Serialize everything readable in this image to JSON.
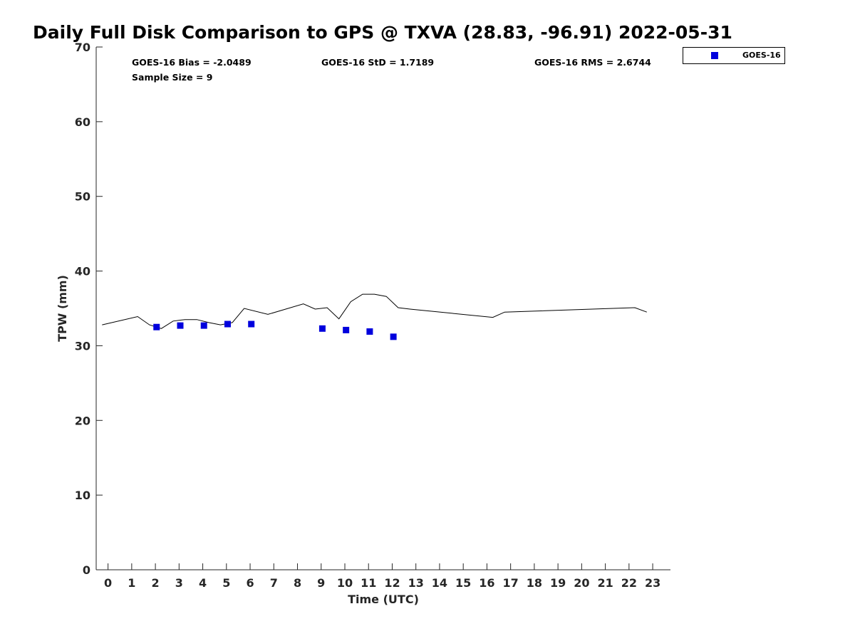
{
  "chart_data": {
    "type": "scatter",
    "title": "Daily Full Disk Comparison to GPS @ TXVA (28.83, -96.91) 2022-05-31",
    "xlabel": "Time (UTC)",
    "ylabel": "TPW (mm)",
    "xlim": [
      -0.5,
      23.75
    ],
    "ylim": [
      0,
      70
    ],
    "xticks": [
      0,
      1,
      2,
      3,
      4,
      5,
      6,
      7,
      8,
      9,
      10,
      11,
      12,
      13,
      14,
      15,
      16,
      17,
      18,
      19,
      20,
      21,
      22,
      23
    ],
    "yticks": [
      0,
      10,
      20,
      30,
      40,
      50,
      60,
      70
    ],
    "grid": false,
    "legend_position": "top-right",
    "stats": {
      "bias": "GOES-16 Bias = -2.0489",
      "std": "GOES-16 StD = 1.7189",
      "rms": "GOES-16 RMS = 2.6744",
      "sample": "Sample Size = 9"
    },
    "series": [
      {
        "name": "GOES-16",
        "kind": "scatter",
        "color": "#0000dd",
        "marker": "square",
        "x": [
          2.05,
          3.05,
          4.05,
          5.05,
          6.05,
          9.05,
          10.05,
          11.05,
          12.05
        ],
        "y": [
          32.5,
          32.7,
          32.7,
          32.9,
          32.9,
          32.3,
          32.1,
          31.9,
          31.2
        ]
      },
      {
        "name": "",
        "kind": "line",
        "color": "#000000",
        "x": [
          -0.25,
          1.25,
          1.75,
          2.25,
          2.75,
          3.25,
          3.75,
          4.25,
          4.75,
          5.25,
          5.75,
          6.75,
          8.25,
          8.75,
          9.25,
          9.75,
          10.25,
          10.75,
          11.25,
          11.75,
          12.25,
          12.75,
          16.25,
          16.75,
          22.25,
          22.75
        ],
        "y": [
          32.8,
          33.9,
          32.8,
          32.3,
          33.3,
          33.5,
          33.5,
          33.1,
          32.8,
          33.1,
          35.0,
          34.2,
          35.6,
          34.9,
          35.1,
          33.6,
          35.9,
          36.9,
          36.9,
          36.6,
          35.1,
          34.9,
          33.8,
          34.5,
          35.1,
          34.5
        ]
      }
    ]
  }
}
